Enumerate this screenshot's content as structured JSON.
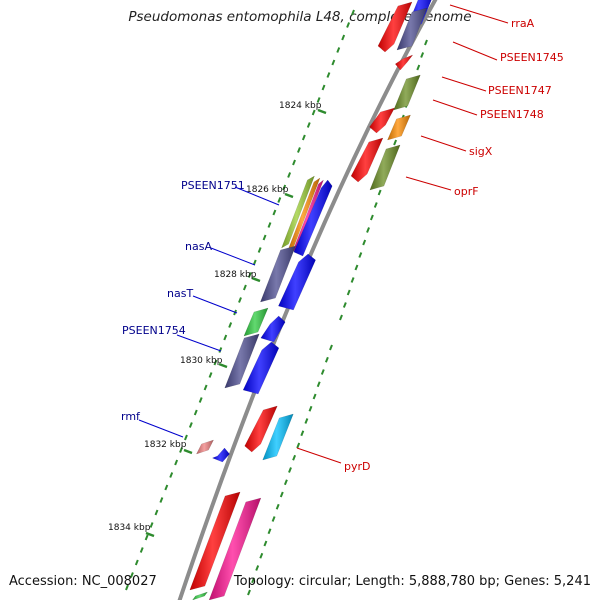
{
  "title": "Pseudomonas entomophila L48, complete genome",
  "footer": {
    "accession": "Accession: NC_008027",
    "summary": "Topology: circular; Length: 5,888,780 bp; Genes: 5,241"
  },
  "colors": {
    "backbone": "#8c8c8c",
    "tick": "#2e8b2e",
    "label_plus": "#cc0000",
    "label_minus": "#00008b",
    "red": "#ff0000",
    "navy": "#4b4b8f",
    "blue": "#0000ff",
    "olive": "#6b8e23",
    "orange": "#ff8c00",
    "green": "#2ecc40",
    "pink": "#f08080",
    "magenta": "#ff1493",
    "cyan": "#00bfff"
  },
  "kbp_labels": [
    {
      "text": "1824 kbp",
      "kbp": 1824
    },
    {
      "text": "1826 kbp",
      "kbp": 1826
    },
    {
      "text": "1828 kbp",
      "kbp": 1828
    },
    {
      "text": "1830 kbp",
      "kbp": 1830
    },
    {
      "text": "1832 kbp",
      "kbp": 1832
    },
    {
      "text": "1834 kbp",
      "kbp": 1834
    }
  ],
  "gene_labels_plus": [
    "rraA",
    "PSEEN1745",
    "PSEEN1747",
    "PSEEN1748",
    "sigX",
    "oprF",
    "pyrD"
  ],
  "gene_labels_minus": [
    "PSEEN1751",
    "nasA",
    "nasT",
    "PSEEN1754",
    "rmf"
  ]
}
